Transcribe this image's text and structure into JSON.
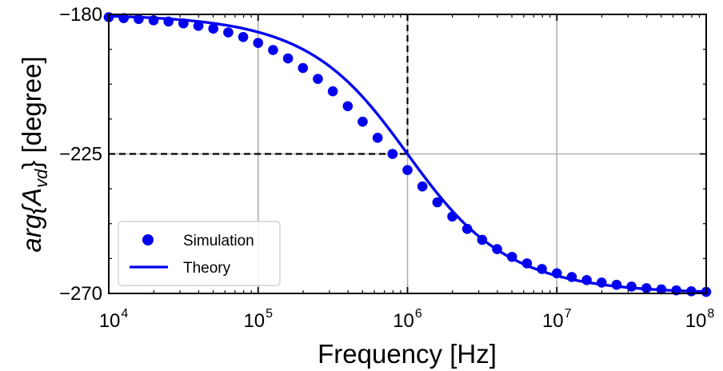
{
  "chart_data": {
    "type": "scatter",
    "title": "",
    "xlabel": "Frequency [Hz]",
    "ylabel_main": "arg{A",
    "ylabel_sub": "vd",
    "ylabel_close": "} [degree]",
    "xscale": "log",
    "xlim": [
      10000,
      100000000
    ],
    "ylim": [
      -270,
      -180
    ],
    "grid": true,
    "x_ticks": [
      {
        "base": "10",
        "exp": "4",
        "value": 10000
      },
      {
        "base": "10",
        "exp": "5",
        "value": 100000
      },
      {
        "base": "10",
        "exp": "6",
        "value": 1000000
      },
      {
        "base": "10",
        "exp": "7",
        "value": 10000000
      },
      {
        "base": "10",
        "exp": "8",
        "value": 100000000
      }
    ],
    "y_ticks": [
      {
        "label": "−180",
        "value": -180
      },
      {
        "label": "−225",
        "value": -225
      },
      {
        "label": "−270",
        "value": -270
      }
    ],
    "reference_lines": {
      "x": 1000000,
      "y": -225,
      "style": "dashed",
      "color": "#000000"
    },
    "legend": {
      "position": "lower-left"
    },
    "series": [
      {
        "name": "Simulation",
        "kind": "scatter",
        "color": "#0000ee",
        "x": [
          10000,
          12589,
          15849,
          19953,
          25119,
          31623,
          39811,
          50119,
          63096,
          79433,
          100000,
          125893,
          158489,
          199526,
          251189,
          316228,
          398107,
          501187,
          630957,
          794328,
          1000000,
          1258925,
          1584893,
          1995262,
          2511886,
          3162278,
          3981072,
          5011872,
          6309573,
          7943282,
          10000000,
          12589254,
          15848932,
          19952623,
          25118864,
          31622777,
          39810717,
          50118723,
          63095734,
          79432823,
          100000000
        ],
        "y": [
          -180.9,
          -181.2,
          -181.5,
          -181.9,
          -182.3,
          -182.9,
          -183.7,
          -184.6,
          -185.8,
          -187.3,
          -189.2,
          -191.5,
          -194.2,
          -197.3,
          -200.8,
          -204.8,
          -209.6,
          -214.6,
          -219.8,
          -225.0,
          -230.2,
          -235.5,
          -240.6,
          -245.2,
          -249.2,
          -252.7,
          -255.7,
          -258.2,
          -260.3,
          -262.1,
          -263.5,
          -264.7,
          -265.7,
          -266.5,
          -267.2,
          -267.8,
          -268.3,
          -268.7,
          -269.0,
          -269.3,
          -269.5
        ]
      },
      {
        "name": "Theory",
        "kind": "line",
        "color": "#0000ee",
        "f0": 1000000
      }
    ]
  }
}
